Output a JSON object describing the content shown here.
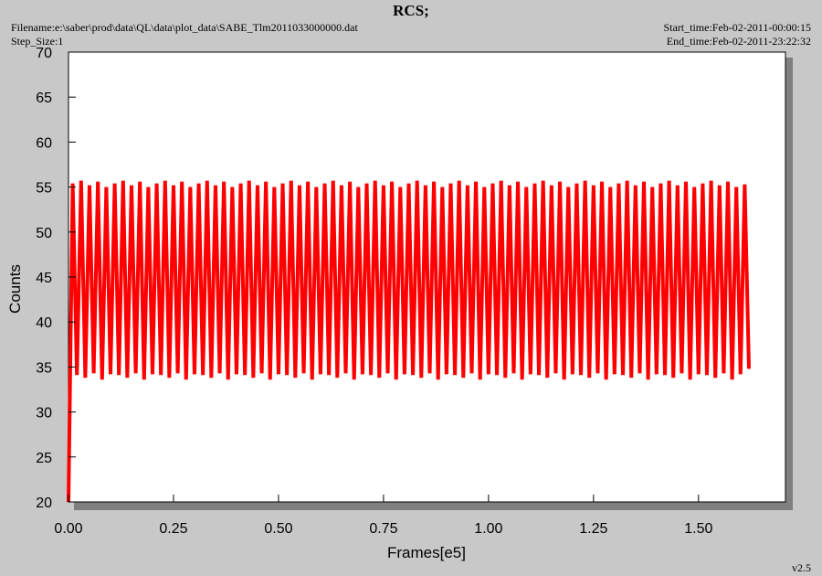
{
  "chart_data": {
    "type": "line",
    "title": "RCS;",
    "filename": "Filename:e:\\saber\\prod\\data\\QL\\data\\plot_data\\SABE_Tlm2011033000000.dat",
    "step_size": "Step_Size:1",
    "start_time": "Start_time:Feb-02-2011-00:00:15",
    "end_time": "End_time:Feb-02-2011-23:22:32",
    "version": "v2.5",
    "xlabel": "Frames[e5]",
    "ylabel": "Counts",
    "color": "#ff0000",
    "xlim": [
      0,
      1.707
    ],
    "ylim": [
      20,
      70
    ],
    "xticks": [
      {
        "value": 0,
        "label": "0.00"
      },
      {
        "value": 0.25,
        "label": "0.25"
      },
      {
        "value": 0.5,
        "label": "0.50"
      },
      {
        "value": 0.75,
        "label": "0.75"
      },
      {
        "value": 1,
        "label": "1.00"
      },
      {
        "value": 1.25,
        "label": "1.25"
      },
      {
        "value": 1.5,
        "label": "1.50"
      }
    ],
    "yticks": [
      20,
      25,
      30,
      35,
      40,
      45,
      50,
      55,
      60,
      65,
      70
    ],
    "x": [
      0,
      0.01,
      0.02,
      0.03,
      0.04,
      0.05,
      0.06,
      0.07,
      0.08,
      0.09,
      0.1,
      0.11,
      0.12,
      0.13,
      0.14,
      0.15,
      0.16,
      0.17,
      0.18,
      0.19,
      0.2,
      0.21,
      0.22,
      0.23,
      0.24,
      0.25,
      0.26,
      0.27,
      0.28,
      0.29,
      0.3,
      0.31,
      0.32,
      0.33,
      0.34,
      0.35,
      0.36,
      0.37,
      0.38,
      0.39,
      0.4,
      0.41,
      0.42,
      0.43,
      0.44,
      0.45,
      0.46,
      0.47,
      0.48,
      0.49,
      0.5,
      0.51,
      0.52,
      0.53,
      0.54,
      0.55,
      0.56,
      0.57,
      0.58,
      0.59,
      0.6,
      0.61,
      0.62,
      0.63,
      0.64,
      0.65,
      0.66,
      0.67,
      0.68,
      0.69,
      0.7,
      0.71,
      0.72,
      0.73,
      0.74,
      0.75,
      0.76,
      0.77,
      0.78,
      0.79,
      0.8,
      0.81,
      0.82,
      0.83,
      0.84,
      0.85,
      0.86,
      0.87,
      0.88,
      0.89,
      0.9,
      0.91,
      0.92,
      0.93,
      0.94,
      0.95,
      0.96,
      0.97,
      0.98,
      0.99,
      1,
      1.01,
      1.02,
      1.03,
      1.04,
      1.05,
      1.06,
      1.07,
      1.08,
      1.09,
      1.1,
      1.11,
      1.12,
      1.13,
      1.14,
      1.15,
      1.16,
      1.17,
      1.18,
      1.19,
      1.2,
      1.21,
      1.22,
      1.23,
      1.24,
      1.25,
      1.26,
      1.27,
      1.28,
      1.29,
      1.3,
      1.31,
      1.32,
      1.33,
      1.34,
      1.35,
      1.36,
      1.37,
      1.38,
      1.39,
      1.4,
      1.41,
      1.42,
      1.43,
      1.44,
      1.45,
      1.46,
      1.47,
      1.48,
      1.49,
      1.5,
      1.51,
      1.52,
      1.53,
      1.54,
      1.55,
      1.56,
      1.57,
      1.58,
      1.59,
      1.6,
      1.61,
      1.62
    ],
    "values": [
      20,
      55.4,
      34.1,
      55.7,
      33.8,
      55.2,
      34.3,
      55.6,
      33.6,
      55.0,
      34.2,
      55.4,
      34.1,
      55.7,
      33.8,
      55.2,
      34.3,
      55.6,
      33.6,
      55.0,
      34.2,
      55.4,
      34.1,
      55.7,
      33.8,
      55.2,
      34.3,
      55.6,
      33.6,
      55.0,
      34.2,
      55.4,
      34.1,
      55.7,
      33.8,
      55.2,
      34.3,
      55.6,
      33.6,
      55.0,
      34.2,
      55.4,
      34.1,
      55.7,
      33.8,
      55.2,
      34.3,
      55.6,
      33.6,
      55.0,
      34.2,
      55.4,
      34.1,
      55.7,
      33.8,
      55.2,
      34.3,
      55.6,
      33.6,
      55.0,
      34.2,
      55.4,
      34.1,
      55.7,
      33.8,
      55.2,
      34.3,
      55.6,
      33.6,
      55.0,
      34.2,
      55.4,
      34.1,
      55.7,
      33.8,
      55.2,
      34.3,
      55.6,
      33.6,
      55.0,
      34.2,
      55.4,
      34.1,
      55.7,
      33.8,
      55.2,
      34.3,
      55.6,
      33.6,
      55.0,
      34.2,
      55.4,
      34.1,
      55.7,
      33.8,
      55.2,
      34.3,
      55.6,
      33.6,
      55.0,
      34.2,
      55.4,
      34.1,
      55.7,
      33.8,
      55.2,
      34.3,
      55.6,
      33.6,
      55.0,
      34.2,
      55.4,
      34.1,
      55.7,
      33.8,
      55.2,
      34.3,
      55.6,
      33.6,
      55.0,
      34.2,
      55.4,
      34.1,
      55.7,
      33.8,
      55.2,
      34.3,
      55.6,
      33.6,
      55.0,
      34.2,
      55.4,
      34.1,
      55.7,
      33.8,
      55.2,
      34.3,
      55.6,
      33.6,
      55.0,
      34.2,
      55.4,
      34.1,
      55.7,
      33.8,
      55.2,
      34.3,
      55.6,
      33.6,
      55.0,
      34.2,
      55.4,
      34.1,
      55.7,
      33.8,
      55.2,
      34.3,
      55.6,
      33.6,
      55.0,
      34.2,
      55.3,
      34.8
    ]
  }
}
